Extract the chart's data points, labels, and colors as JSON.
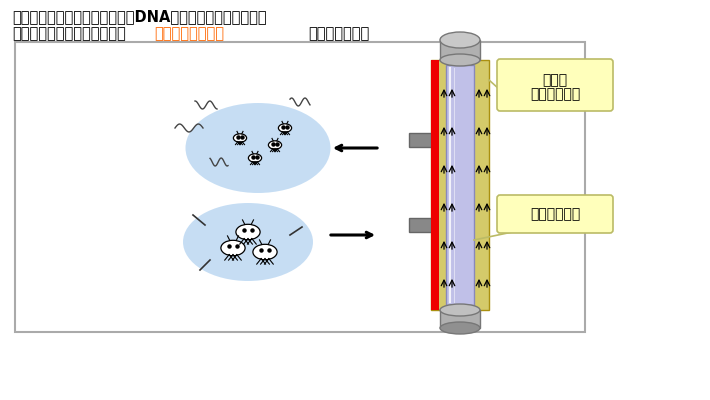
{
  "title_line1": "紫外線殺菌灯は、生物の細胞（DNA）等に有害な「短波長紫",
  "title_line2_black1": "外線」を人工的に発生させ、",
  "title_line2_orange": "細菌増殖抑制効果",
  "title_line2_black2": "を発揮します。",
  "label1_line1": "光触媒",
  "label1_line2": "塗布プレート",
  "label2": "紫外線殺菌灯",
  "bg_color": "#ffffff",
  "box_border": "#aaaaaa",
  "lamp_outer_color": "#d4ca6a",
  "lamp_inner_color": "#c0c0e8",
  "lamp_red_color": "#ee0000",
  "callout_bg": "#ffffbb",
  "callout_border": "#bbbb66",
  "text_color": "#000000",
  "orange_color": "#ff6600",
  "bacteria_blob_color": "#a8ccee",
  "slot_color": "#888888",
  "arrow_black": "#111111",
  "cap_color": "#b0b0b0",
  "cap_dark": "#808080"
}
